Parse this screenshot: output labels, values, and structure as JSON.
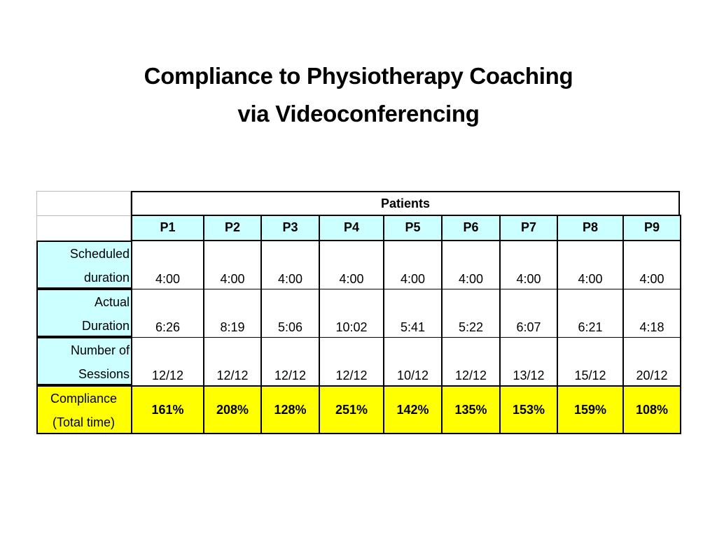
{
  "title": [
    "Compliance to Physiotherapy Coaching",
    "via Videoconferencing"
  ],
  "table": {
    "group_header": "Patients",
    "columns": [
      "P1",
      "P2",
      "P3",
      "P4",
      "P5",
      "P6",
      "P7",
      "P8",
      "P9"
    ],
    "rows": [
      {
        "label": [
          "Scheduled",
          "duration"
        ],
        "cells": [
          "4:00",
          "4:00",
          "4:00",
          "4:00",
          "4:00",
          "4:00",
          "4:00",
          "4:00",
          "4:00"
        ]
      },
      {
        "label": [
          "Actual",
          "Duration"
        ],
        "cells": [
          "6:26",
          "8:19",
          "5:06",
          "10:02",
          "5:41",
          "5:22",
          "6:07",
          "6:21",
          "4:18"
        ]
      },
      {
        "label": [
          "Number of",
          "Sessions"
        ],
        "cells": [
          "12/12",
          "12/12",
          "12/12",
          "12/12",
          "10/12",
          "12/12",
          "13/12",
          "15/12",
          "20/12"
        ]
      },
      {
        "label": [
          "Compliance",
          "(Total time)"
        ],
        "cells": [
          "161%",
          "208%",
          "128%",
          "251%",
          "142%",
          "135%",
          "153%",
          "159%",
          "108%"
        ]
      }
    ]
  }
}
